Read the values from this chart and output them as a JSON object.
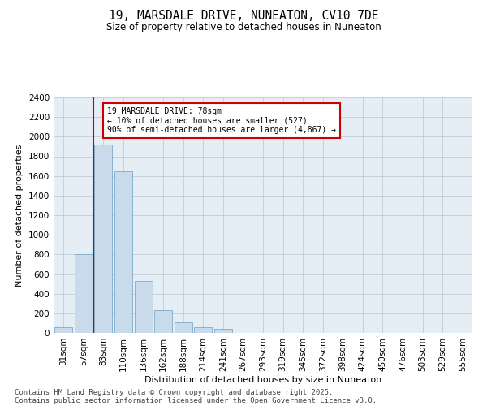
{
  "title": "19, MARSDALE DRIVE, NUNEATON, CV10 7DE",
  "subtitle": "Size of property relative to detached houses in Nuneaton",
  "xlabel": "Distribution of detached houses by size in Nuneaton",
  "ylabel": "Number of detached properties",
  "categories": [
    "31sqm",
    "57sqm",
    "83sqm",
    "110sqm",
    "136sqm",
    "162sqm",
    "188sqm",
    "214sqm",
    "241sqm",
    "267sqm",
    "293sqm",
    "319sqm",
    "345sqm",
    "372sqm",
    "398sqm",
    "424sqm",
    "450sqm",
    "476sqm",
    "503sqm",
    "529sqm",
    "555sqm"
  ],
  "values": [
    60,
    800,
    1920,
    1650,
    530,
    230,
    110,
    60,
    40,
    0,
    0,
    0,
    0,
    0,
    0,
    0,
    0,
    0,
    0,
    0,
    0
  ],
  "bar_color": "#c9daea",
  "bar_edge_color": "#7aaac8",
  "vline_pos": 1.5,
  "vline_color": "#cc0000",
  "annotation_text": "19 MARSDALE DRIVE: 78sqm\n← 10% of detached houses are smaller (527)\n90% of semi-detached houses are larger (4,867) →",
  "annotation_box_color": "#cc0000",
  "ylim": [
    0,
    2400
  ],
  "yticks": [
    0,
    200,
    400,
    600,
    800,
    1000,
    1200,
    1400,
    1600,
    1800,
    2000,
    2200,
    2400
  ],
  "grid_color": "#c0ccd8",
  "bg_color": "#e6eef5",
  "footer_line1": "Contains HM Land Registry data © Crown copyright and database right 2025.",
  "footer_line2": "Contains public sector information licensed under the Open Government Licence v3.0.",
  "title_fontsize": 10.5,
  "subtitle_fontsize": 8.5,
  "axis_label_fontsize": 8,
  "tick_fontsize": 7.5,
  "footer_fontsize": 6.5
}
